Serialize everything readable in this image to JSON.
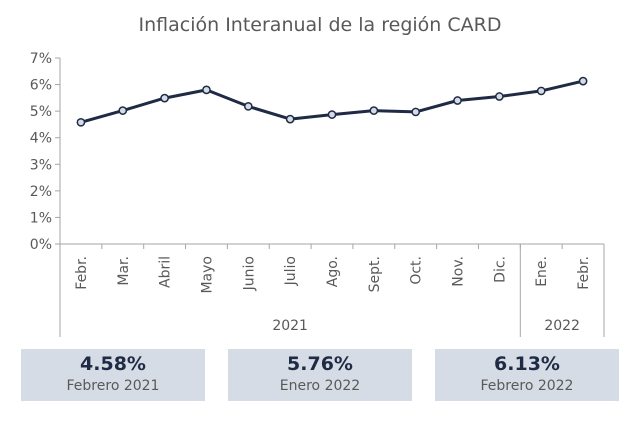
{
  "chart_data": {
    "type": "line",
    "title": "Inflación Interanual de la región CARD",
    "categories": [
      "Febr.",
      "Mar.",
      "Abril",
      "Mayo",
      "Junio",
      "Julio",
      "Ago.",
      "Sept.",
      "Oct.",
      "Nov.",
      "Dic.",
      "Ene.",
      "Febr."
    ],
    "series": [
      {
        "values": [
          4.58,
          5.02,
          5.49,
          5.8,
          5.18,
          4.7,
          4.87,
          5.02,
          4.97,
          5.4,
          5.55,
          5.76,
          6.13
        ]
      }
    ],
    "year_groups": [
      {
        "label": "2021",
        "start": 0,
        "end": 10
      },
      {
        "label": "2022",
        "start": 11,
        "end": 12
      }
    ],
    "yticks": [
      "0%",
      "1%",
      "2%",
      "3%",
      "4%",
      "5%",
      "6%",
      "7%"
    ],
    "ylim": [
      0,
      7
    ],
    "grid": false,
    "line_color": "#1f2a44",
    "marker_fill": "#d6dce5"
  },
  "cards": [
    {
      "value": "4.58%",
      "label": "Febrero 2021"
    },
    {
      "value": "5.76%",
      "label": "Enero 2022"
    },
    {
      "value": "6.13%",
      "label": "Febrero 2022"
    }
  ]
}
